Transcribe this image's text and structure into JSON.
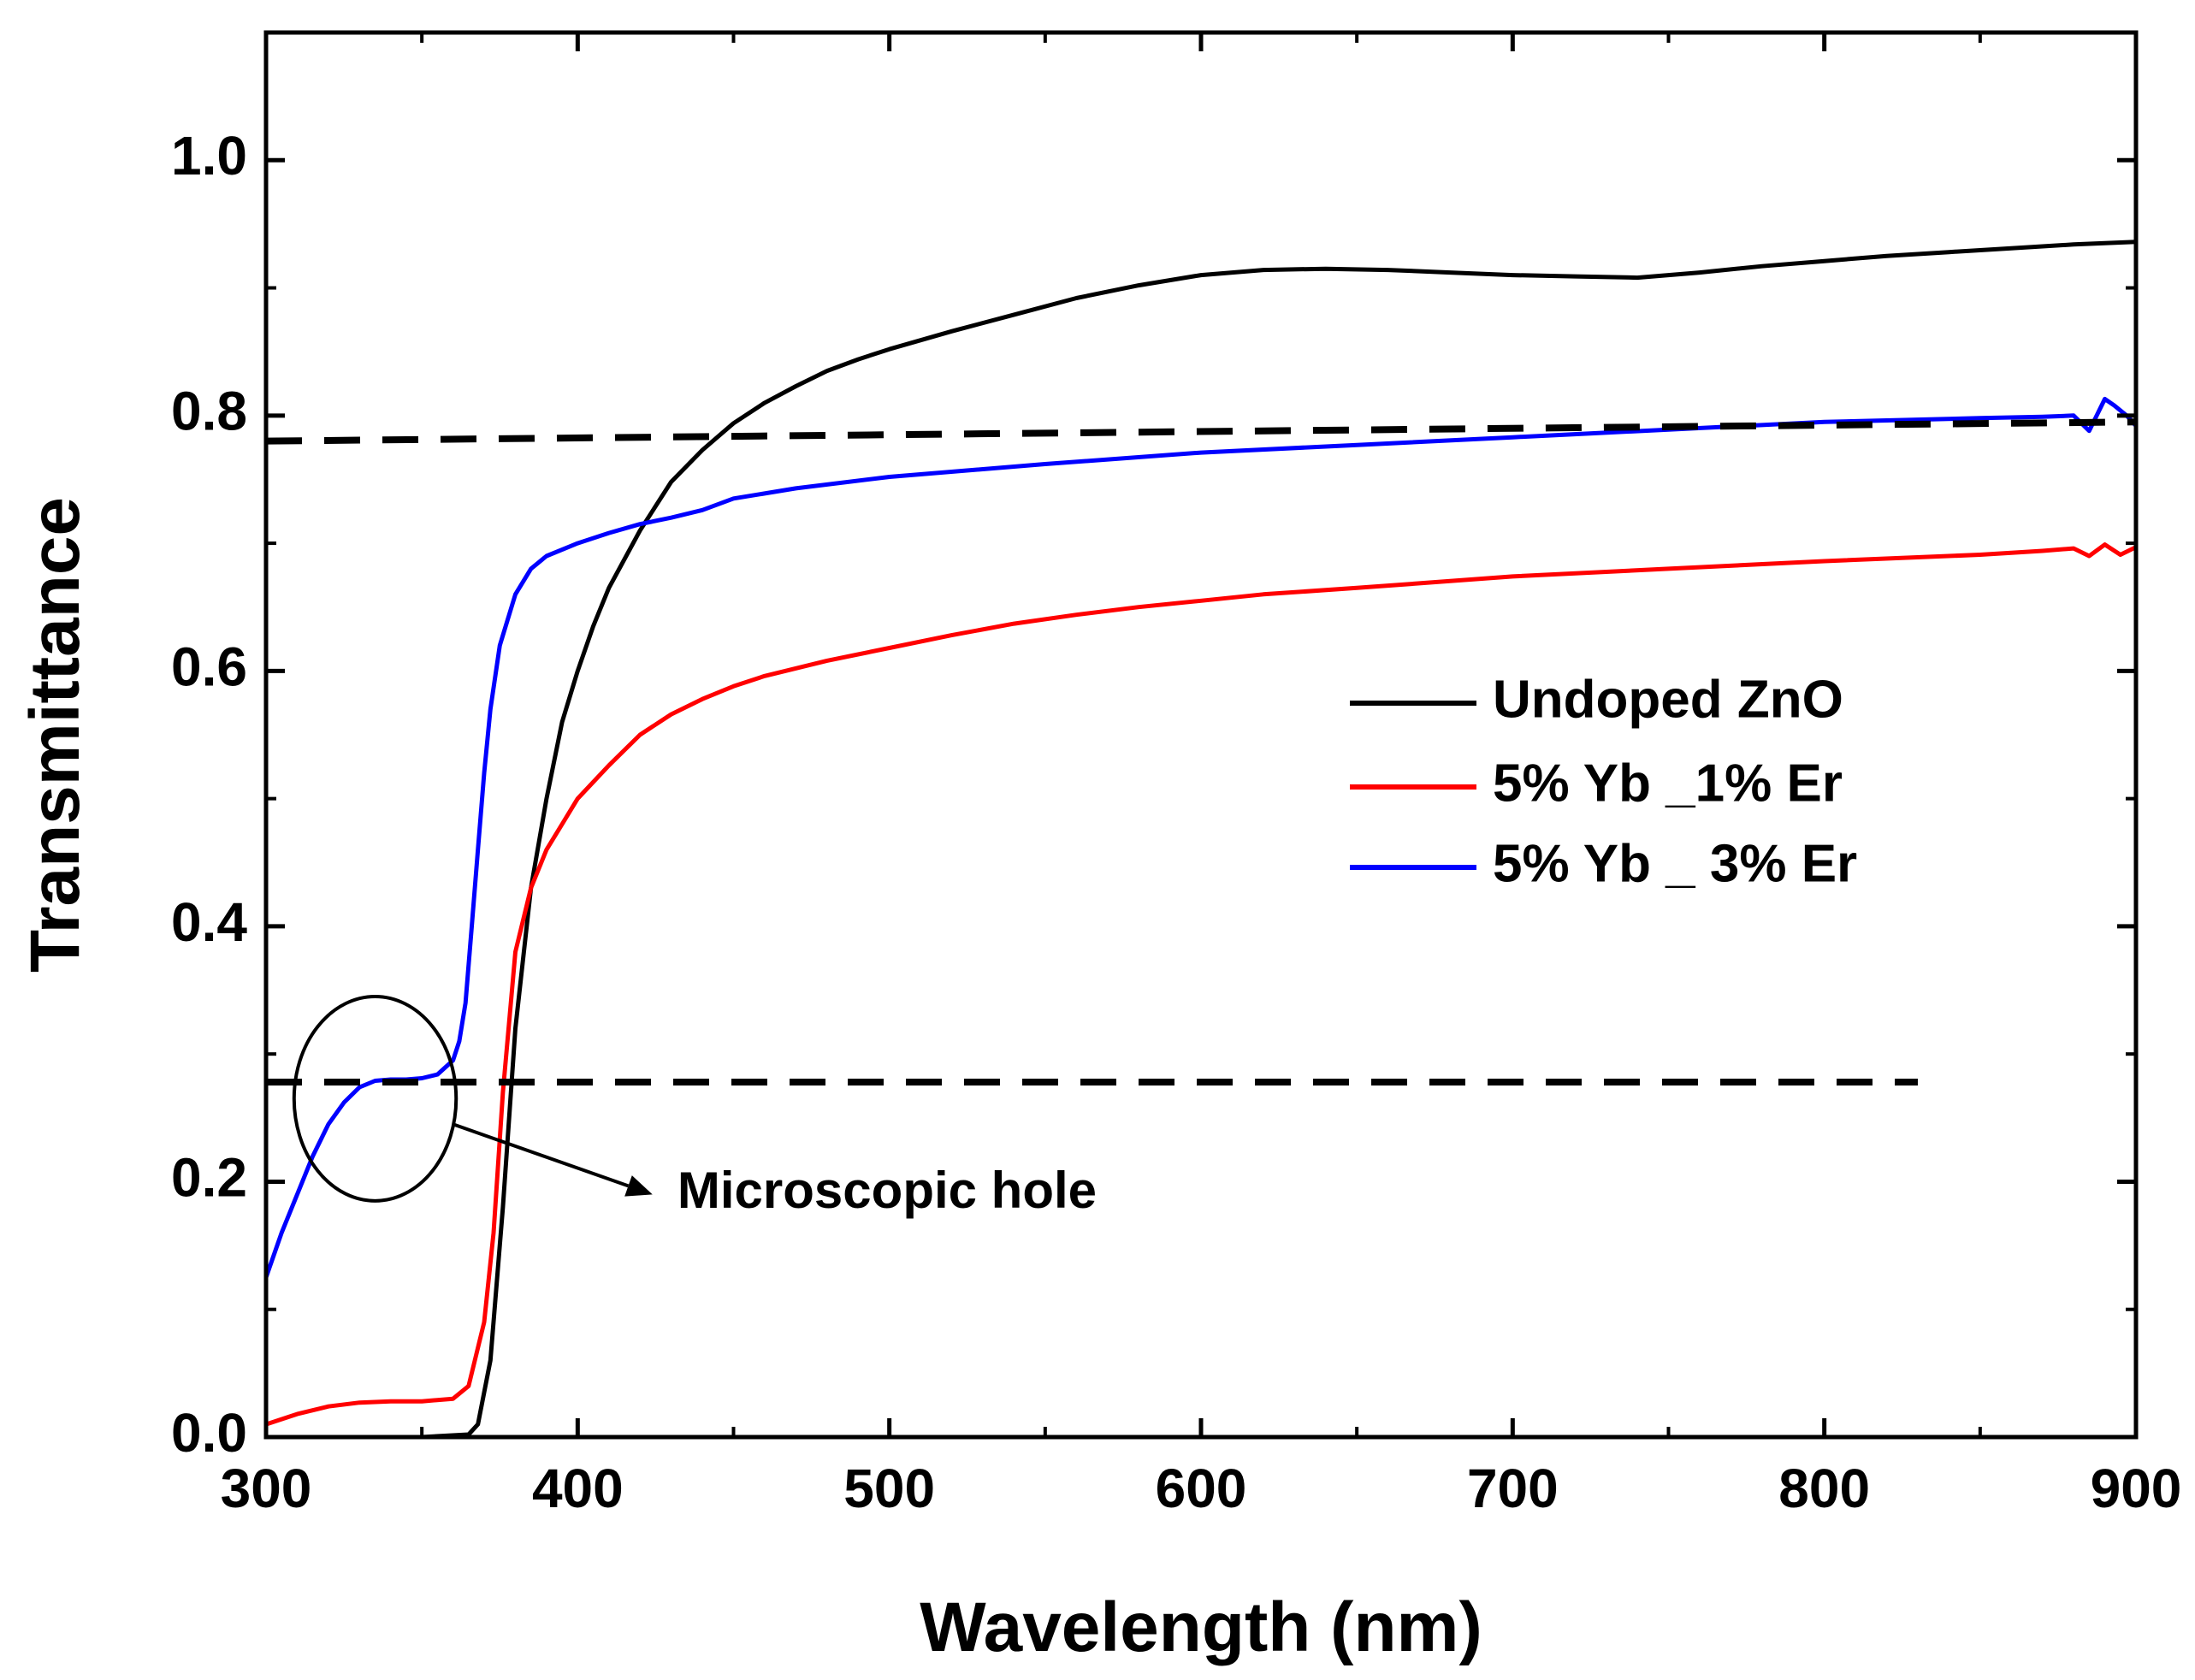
{
  "chart_data": {
    "type": "line",
    "title": "",
    "xlabel": "Wavelength (nm)",
    "ylabel": "Transmittance",
    "xlim": [
      300,
      900
    ],
    "ylim": [
      0.0,
      1.1
    ],
    "x_ticks": [
      300,
      400,
      500,
      600,
      700,
      800,
      900
    ],
    "x_tick_labels": [
      "300",
      "400",
      "500",
      "600",
      "700",
      "800",
      "900"
    ],
    "y_ticks": [
      0.0,
      0.2,
      0.4,
      0.6,
      0.8,
      1.0
    ],
    "y_tick_labels": [
      "0.0",
      "0.2",
      "0.4",
      "0.6",
      "0.8",
      "1.0"
    ],
    "grid": false,
    "legend_position": "right-middle",
    "series": [
      {
        "name": "Undoped ZnO",
        "color": "#000000",
        "x": [
          300,
          350,
          365,
          368,
          372,
          376,
          380,
          385,
          390,
          395,
          400,
          405,
          410,
          420,
          430,
          440,
          450,
          460,
          470,
          480,
          490,
          500,
          520,
          540,
          560,
          580,
          600,
          620,
          640,
          660,
          680,
          700,
          720,
          740,
          760,
          780,
          800,
          820,
          840,
          860,
          880,
          900
        ],
        "y": [
          0.0,
          0.0,
          0.002,
          0.01,
          0.06,
          0.18,
          0.32,
          0.43,
          0.5,
          0.56,
          0.6,
          0.635,
          0.665,
          0.71,
          0.748,
          0.773,
          0.794,
          0.81,
          0.823,
          0.835,
          0.844,
          0.852,
          0.866,
          0.879,
          0.892,
          0.902,
          0.91,
          0.914,
          0.915,
          0.914,
          0.912,
          0.91,
          0.909,
          0.908,
          0.912,
          0.917,
          0.921,
          0.925,
          0.928,
          0.931,
          0.934,
          0.936
        ]
      },
      {
        "name": "5% Yb _1% Er",
        "color": "#ff0000",
        "x": [
          300,
          310,
          320,
          330,
          340,
          350,
          360,
          365,
          370,
          373,
          376,
          380,
          385,
          390,
          395,
          400,
          410,
          420,
          430,
          440,
          450,
          460,
          480,
          500,
          520,
          540,
          560,
          580,
          600,
          620,
          650,
          700,
          750,
          800,
          850,
          870,
          880,
          885,
          890,
          895,
          900
        ],
        "y": [
          0.01,
          0.018,
          0.024,
          0.027,
          0.028,
          0.028,
          0.03,
          0.04,
          0.09,
          0.16,
          0.27,
          0.38,
          0.43,
          0.46,
          0.48,
          0.5,
          0.526,
          0.55,
          0.566,
          0.578,
          0.588,
          0.596,
          0.608,
          0.618,
          0.628,
          0.637,
          0.644,
          0.65,
          0.655,
          0.66,
          0.665,
          0.674,
          0.68,
          0.686,
          0.691,
          0.694,
          0.696,
          0.69,
          0.699,
          0.691,
          0.697
        ]
      },
      {
        "name": "5% Yb _ 3% Er",
        "color": "#0000ff",
        "x": [
          300,
          305,
          310,
          315,
          320,
          325,
          330,
          335,
          340,
          345,
          350,
          355,
          360,
          362,
          364,
          366,
          368,
          370,
          372,
          375,
          380,
          385,
          390,
          400,
          410,
          420,
          430,
          440,
          450,
          470,
          500,
          550,
          600,
          650,
          700,
          750,
          800,
          850,
          870,
          880,
          885,
          890,
          893,
          897,
          900
        ],
        "y": [
          0.125,
          0.16,
          0.19,
          0.22,
          0.245,
          0.262,
          0.274,
          0.279,
          0.28,
          0.28,
          0.281,
          0.284,
          0.295,
          0.31,
          0.34,
          0.4,
          0.46,
          0.52,
          0.57,
          0.62,
          0.66,
          0.68,
          0.69,
          0.7,
          0.708,
          0.715,
          0.72,
          0.726,
          0.735,
          0.743,
          0.752,
          0.762,
          0.771,
          0.777,
          0.783,
          0.789,
          0.795,
          0.798,
          0.799,
          0.8,
          0.788,
          0.813,
          0.808,
          0.8,
          0.792
        ]
      }
    ],
    "reference_lines": [
      {
        "name": "upper-dashed",
        "y": 0.78,
        "y_end": 0.795,
        "x_start": 300,
        "x_end": 900
      },
      {
        "name": "lower-dashed",
        "y": 0.278,
        "y_end": 0.278,
        "x_start": 300,
        "x_end": 830
      }
    ],
    "annotation": {
      "text": "Microscopic hole",
      "circle_center": [
        335,
        0.265
      ],
      "circle_radius_x": 26,
      "circle_radius_y": 0.08,
      "arrow_from": [
        360,
        0.245
      ],
      "arrow_to": [
        424,
        0.19
      ],
      "text_anchor": [
        432,
        0.19
      ]
    }
  }
}
